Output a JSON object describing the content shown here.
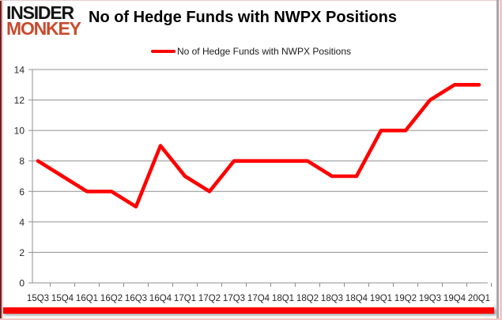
{
  "branding": {
    "logo_line1": "INSIDER",
    "logo_line2": "MONKEY",
    "logo_line2_color": "#c94a2e"
  },
  "header": {
    "title": "No of Hedge Funds with NWPX Positions"
  },
  "legend": {
    "label": "No of Hedge Funds with NWPX Positions",
    "marker_color": "#ff0000"
  },
  "frame": {
    "bottom_bar_color": "#ff0000"
  },
  "chart_data": {
    "type": "line",
    "title": "No of Hedge Funds with NWPX Positions",
    "categories": [
      "15Q3",
      "15Q4",
      "16Q1",
      "16Q2",
      "16Q3",
      "16Q4",
      "17Q1",
      "17Q2",
      "17Q3",
      "17Q4",
      "18Q1",
      "18Q2",
      "18Q3",
      "18Q4",
      "19Q1",
      "19Q2",
      "19Q3",
      "19Q4",
      "20Q1"
    ],
    "series": [
      {
        "name": "No of Hedge Funds with NWPX Positions",
        "color": "#ff0000",
        "values": [
          8,
          7,
          6,
          6,
          5,
          9,
          7,
          6,
          8,
          8,
          8,
          8,
          7,
          7,
          10,
          10,
          12,
          13,
          13
        ]
      }
    ],
    "xlabel": "",
    "ylabel": "",
    "ylim": [
      0,
      14
    ],
    "yticks": [
      0,
      2,
      4,
      6,
      8,
      10,
      12,
      14
    ],
    "grid": true,
    "gridline_color": "#8f8f8f",
    "axis_text_color": "#262626",
    "legend_position": "top-center",
    "plot_background": "#ffffff"
  }
}
